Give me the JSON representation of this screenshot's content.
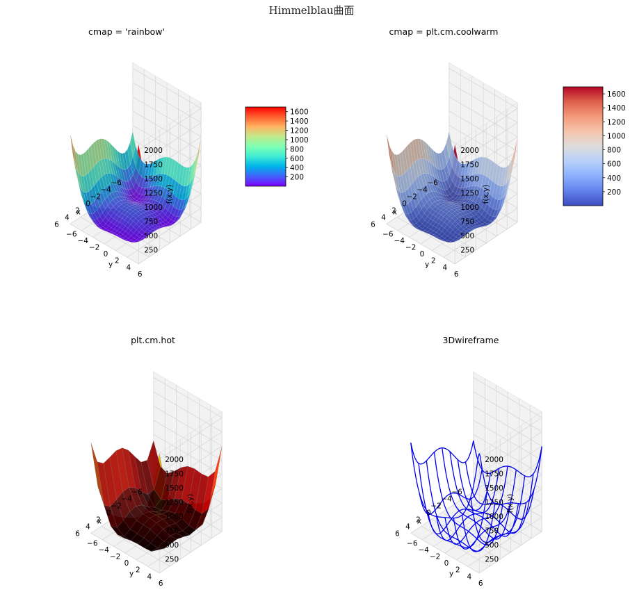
{
  "figure": {
    "suptitle": "Himmelblau曲面"
  },
  "colormaps": {
    "rainbow": [
      "#8000ff",
      "#4062fa",
      "#00b4eb",
      "#40ecd4",
      "#80ffb4",
      "#c0eb8d",
      "#ffb462",
      "#ff6030",
      "#ff0000"
    ],
    "coolwarm": [
      "#3b4cc0",
      "#6282ea",
      "#8db0fe",
      "#b8d0f9",
      "#dddcdc",
      "#f5c4ac",
      "#f49a7b",
      "#dd604c",
      "#b40426"
    ],
    "hot": [
      "#0b0000",
      "#4d0000",
      "#8f0000",
      "#d20000",
      "#ff1500",
      "#ff5700",
      "#ff9900",
      "#ffdb00",
      "#ffff40"
    ]
  },
  "wire_color": "#0000ee",
  "chart_data": [
    {
      "type": "surface3d",
      "title": "cmap = 'rainbow'",
      "function": "Himmelblau f(x,y) = (x^2 + y - 11)^2 + (x + y^2 - 7)^2",
      "cmap": "rainbow",
      "xlabel": "x",
      "ylabel": "y",
      "zlabel": "f(x,y)",
      "xlim": [
        -6,
        6
      ],
      "ylim": [
        -6,
        6
      ],
      "zlim": [
        0,
        2100
      ],
      "xticks": [
        "-6",
        "-4",
        "-2",
        "0",
        "2",
        "4",
        "6"
      ],
      "yticks": [
        "-6",
        "-4",
        "-2",
        "0",
        "2",
        "4",
        "6"
      ],
      "zticks": [
        "250",
        "500",
        "750",
        "1000",
        "1250",
        "1500",
        "1750",
        "2000"
      ],
      "colorbar": {
        "ticks": [
          "200",
          "400",
          "600",
          "800",
          "1000",
          "1200",
          "1400",
          "1600"
        ],
        "range": [
          0,
          1700
        ]
      }
    },
    {
      "type": "surface3d",
      "title": "cmap = plt.cm.coolwarm",
      "function": "Himmelblau f(x,y) = (x^2 + y - 11)^2 + (x + y^2 - 7)^2",
      "cmap": "coolwarm",
      "xlabel": "x",
      "ylabel": "y",
      "zlabel": "f(x,y)",
      "xlim": [
        -6,
        6
      ],
      "ylim": [
        -6,
        6
      ],
      "zlim": [
        0,
        2100
      ],
      "xticks": [
        "-6",
        "-4",
        "-2",
        "0",
        "2",
        "4",
        "6"
      ],
      "yticks": [
        "-6",
        "-4",
        "-2",
        "0",
        "2",
        "4",
        "6"
      ],
      "zticks": [
        "250",
        "500",
        "750",
        "1000",
        "1250",
        "1500",
        "1750",
        "2000"
      ],
      "colorbar": {
        "ticks": [
          "200",
          "400",
          "600",
          "800",
          "1000",
          "1200",
          "1400",
          "1600"
        ],
        "range": [
          0,
          1700
        ]
      }
    },
    {
      "type": "surface3d",
      "title": "plt.cm.hot",
      "function": "Himmelblau f(x,y) = (x^2 + y - 11)^2 + (x + y^2 - 7)^2",
      "cmap": "hot",
      "xlabel": "x",
      "ylabel": "y",
      "zlabel": "f(x,y)",
      "xlim": [
        -6,
        6
      ],
      "ylim": [
        -6,
        6
      ],
      "zlim": [
        0,
        2100
      ],
      "xticks": [
        "-6",
        "-4",
        "-2",
        "0",
        "2",
        "4",
        "6"
      ],
      "yticks": [
        "-6",
        "-4",
        "-2",
        "0",
        "2",
        "4",
        "6"
      ],
      "zticks": [
        "250",
        "500",
        "750",
        "1000",
        "1250",
        "1500",
        "1750",
        "2000"
      ]
    },
    {
      "type": "wireframe3d",
      "title": "3Dwireframe",
      "function": "Himmelblau f(x,y) = (x^2 + y - 11)^2 + (x + y^2 - 7)^2",
      "xlabel": "x",
      "ylabel": "y",
      "zlabel": "f(x,y)",
      "xlim": [
        -6,
        6
      ],
      "ylim": [
        -6,
        6
      ],
      "zlim": [
        0,
        2100
      ],
      "xticks": [
        "-6",
        "-4",
        "-2",
        "0",
        "2",
        "4",
        "6"
      ],
      "yticks": [
        "-6",
        "-4",
        "-2",
        "0",
        "2",
        "4",
        "6"
      ],
      "zticks": [
        "250",
        "500",
        "750",
        "1000",
        "1250",
        "1500",
        "1750",
        "2000"
      ]
    }
  ]
}
